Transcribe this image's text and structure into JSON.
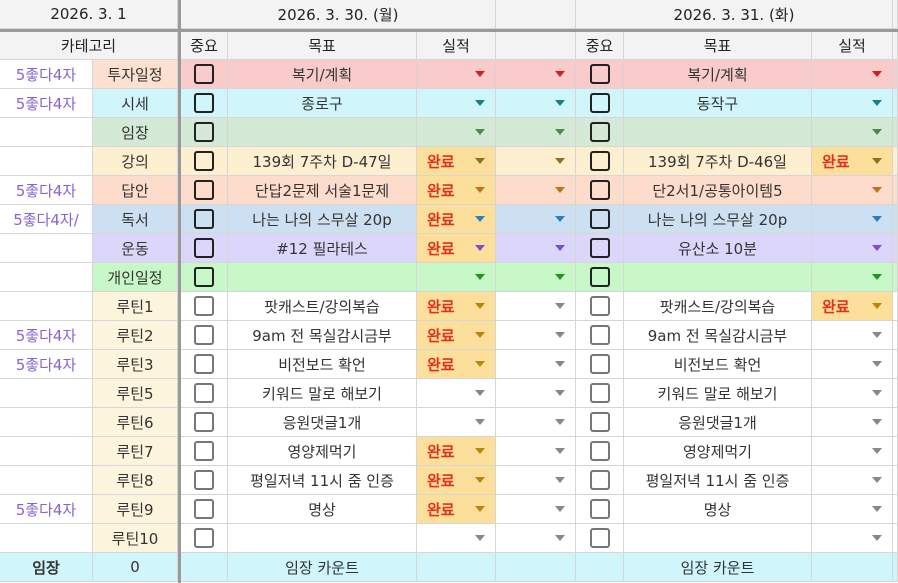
{
  "header": {
    "ref_date": "2026. 3. 1",
    "day1_date": "2026. 3. 30. (월)",
    "day2_date": "2026. 3. 31. (화)",
    "category": "카테고리",
    "importance": "중요",
    "goal": "목표",
    "result": "실적"
  },
  "colors": {
    "done_bg": "#fddf9c",
    "done_text": "#e0301e",
    "label_purple": "#8a63d2",
    "routine_cat_bg": "#fdf4de"
  },
  "rows": [
    {
      "label": "5좋다4자",
      "category": "투자일정",
      "cat_bg": "#fde0cf",
      "bg": "#f9cbcb",
      "arrow": "#d81b1b",
      "day1": {
        "goal": "복기/계획",
        "result": ""
      },
      "day2": {
        "goal": "복기/계획",
        "result": ""
      }
    },
    {
      "label": "5좋다4자",
      "category": "시세",
      "cat_bg": "#d0f6fb",
      "bg": "#d0f6fb",
      "arrow": "#1a7f86",
      "day1": {
        "goal": "종로구",
        "result": ""
      },
      "day2": {
        "goal": "동작구",
        "result": ""
      }
    },
    {
      "label": "",
      "category": "임장",
      "cat_bg": "#d5ead6",
      "bg": "#d5ead6",
      "arrow": "#4e8a4e",
      "day1": {
        "goal": "",
        "result": ""
      },
      "day2": {
        "goal": "",
        "result": ""
      }
    },
    {
      "label": "",
      "category": "강의",
      "cat_bg": "#fdefcf",
      "bg": "#fdefcf",
      "arrow": "#8a7020",
      "day1": {
        "goal": "139회 7주차 D-47일",
        "result": "완료"
      },
      "day2": {
        "goal": "139회 7주차 D-46일",
        "result": "완료"
      }
    },
    {
      "label": "5좋다4자",
      "category": "답안",
      "cat_bg": "#fddccc",
      "bg": "#fddccc",
      "arrow": "#b8751e",
      "day1": {
        "goal": "단답2문제 서술1문제",
        "result": "완료"
      },
      "day2": {
        "goal": "단2서1/공통아이템5",
        "result": ""
      }
    },
    {
      "label": "5좋다4자/",
      "category": "독서",
      "cat_bg": "#cde0f2",
      "bg": "#cde0f2",
      "arrow": "#2a7fc0",
      "day1": {
        "goal": "나는 나의 스무살 20p",
        "result": "완료"
      },
      "day2": {
        "goal": "나는 나의 스무살 20p",
        "result": ""
      }
    },
    {
      "label": "",
      "category": "운동",
      "cat_bg": "#ddd6fb",
      "bg": "#ddd6fb",
      "arrow": "#7a4fd0",
      "day1": {
        "goal": "#12 필라테스",
        "result": "완료"
      },
      "day2": {
        "goal": "유산소 10분",
        "result": ""
      }
    },
    {
      "label": "",
      "category": "개인일정",
      "cat_bg": "#c8f7c8",
      "bg": "#c8f7c8",
      "arrow": "#1f9a1f",
      "day1": {
        "goal": "",
        "result": ""
      },
      "day2": {
        "goal": "",
        "result": ""
      }
    },
    {
      "label": "",
      "category": "루틴1",
      "routine": true,
      "day1": {
        "goal": "팟캐스트/강의복습",
        "result": "완료"
      },
      "day2": {
        "goal": "팟캐스트/강의복습",
        "result": "완료"
      }
    },
    {
      "label": "5좋다4자",
      "category": "루틴2",
      "routine": true,
      "day1": {
        "goal": "9am 전 목실감시금부",
        "result": "완료"
      },
      "day2": {
        "goal": "9am 전 목실감시금부",
        "result": ""
      }
    },
    {
      "label": "5좋다4자",
      "category": "루틴3",
      "routine": true,
      "day1": {
        "goal": "비전보드 확언",
        "result": "완료"
      },
      "day2": {
        "goal": "비전보드 확언",
        "result": ""
      }
    },
    {
      "label": "",
      "category": "루틴5",
      "routine": true,
      "day1": {
        "goal": "키워드 말로 해보기",
        "result": ""
      },
      "day2": {
        "goal": "키워드 말로 해보기",
        "result": ""
      }
    },
    {
      "label": "",
      "category": "루틴6",
      "routine": true,
      "day1": {
        "goal": "응원댓글1개",
        "result": ""
      },
      "day2": {
        "goal": "응원댓글1개",
        "result": ""
      }
    },
    {
      "label": "",
      "category": "루틴7",
      "routine": true,
      "day1": {
        "goal": "영양제먹기",
        "result": "완료"
      },
      "day2": {
        "goal": "영양제먹기",
        "result": ""
      }
    },
    {
      "label": "",
      "category": "루틴8",
      "routine": true,
      "day1": {
        "goal": "평일저녁 11시 줌 인증",
        "result": "완료"
      },
      "day2": {
        "goal": "평일저녁 11시 줌 인증",
        "result": ""
      }
    },
    {
      "label": "5좋다4자",
      "category": "루틴9",
      "routine": true,
      "day1": {
        "goal": "명상",
        "result": "완료"
      },
      "day2": {
        "goal": "명상",
        "result": ""
      }
    },
    {
      "label": "",
      "category": "루틴10",
      "routine": true,
      "day1": {
        "goal": "",
        "result": ""
      },
      "day2": {
        "goal": "",
        "result": ""
      }
    }
  ],
  "footer": {
    "label": "임장",
    "count": "0",
    "day1_goal": "임장 카운트",
    "day2_goal": "임장 카운트",
    "bg": "#d0f6fb"
  }
}
